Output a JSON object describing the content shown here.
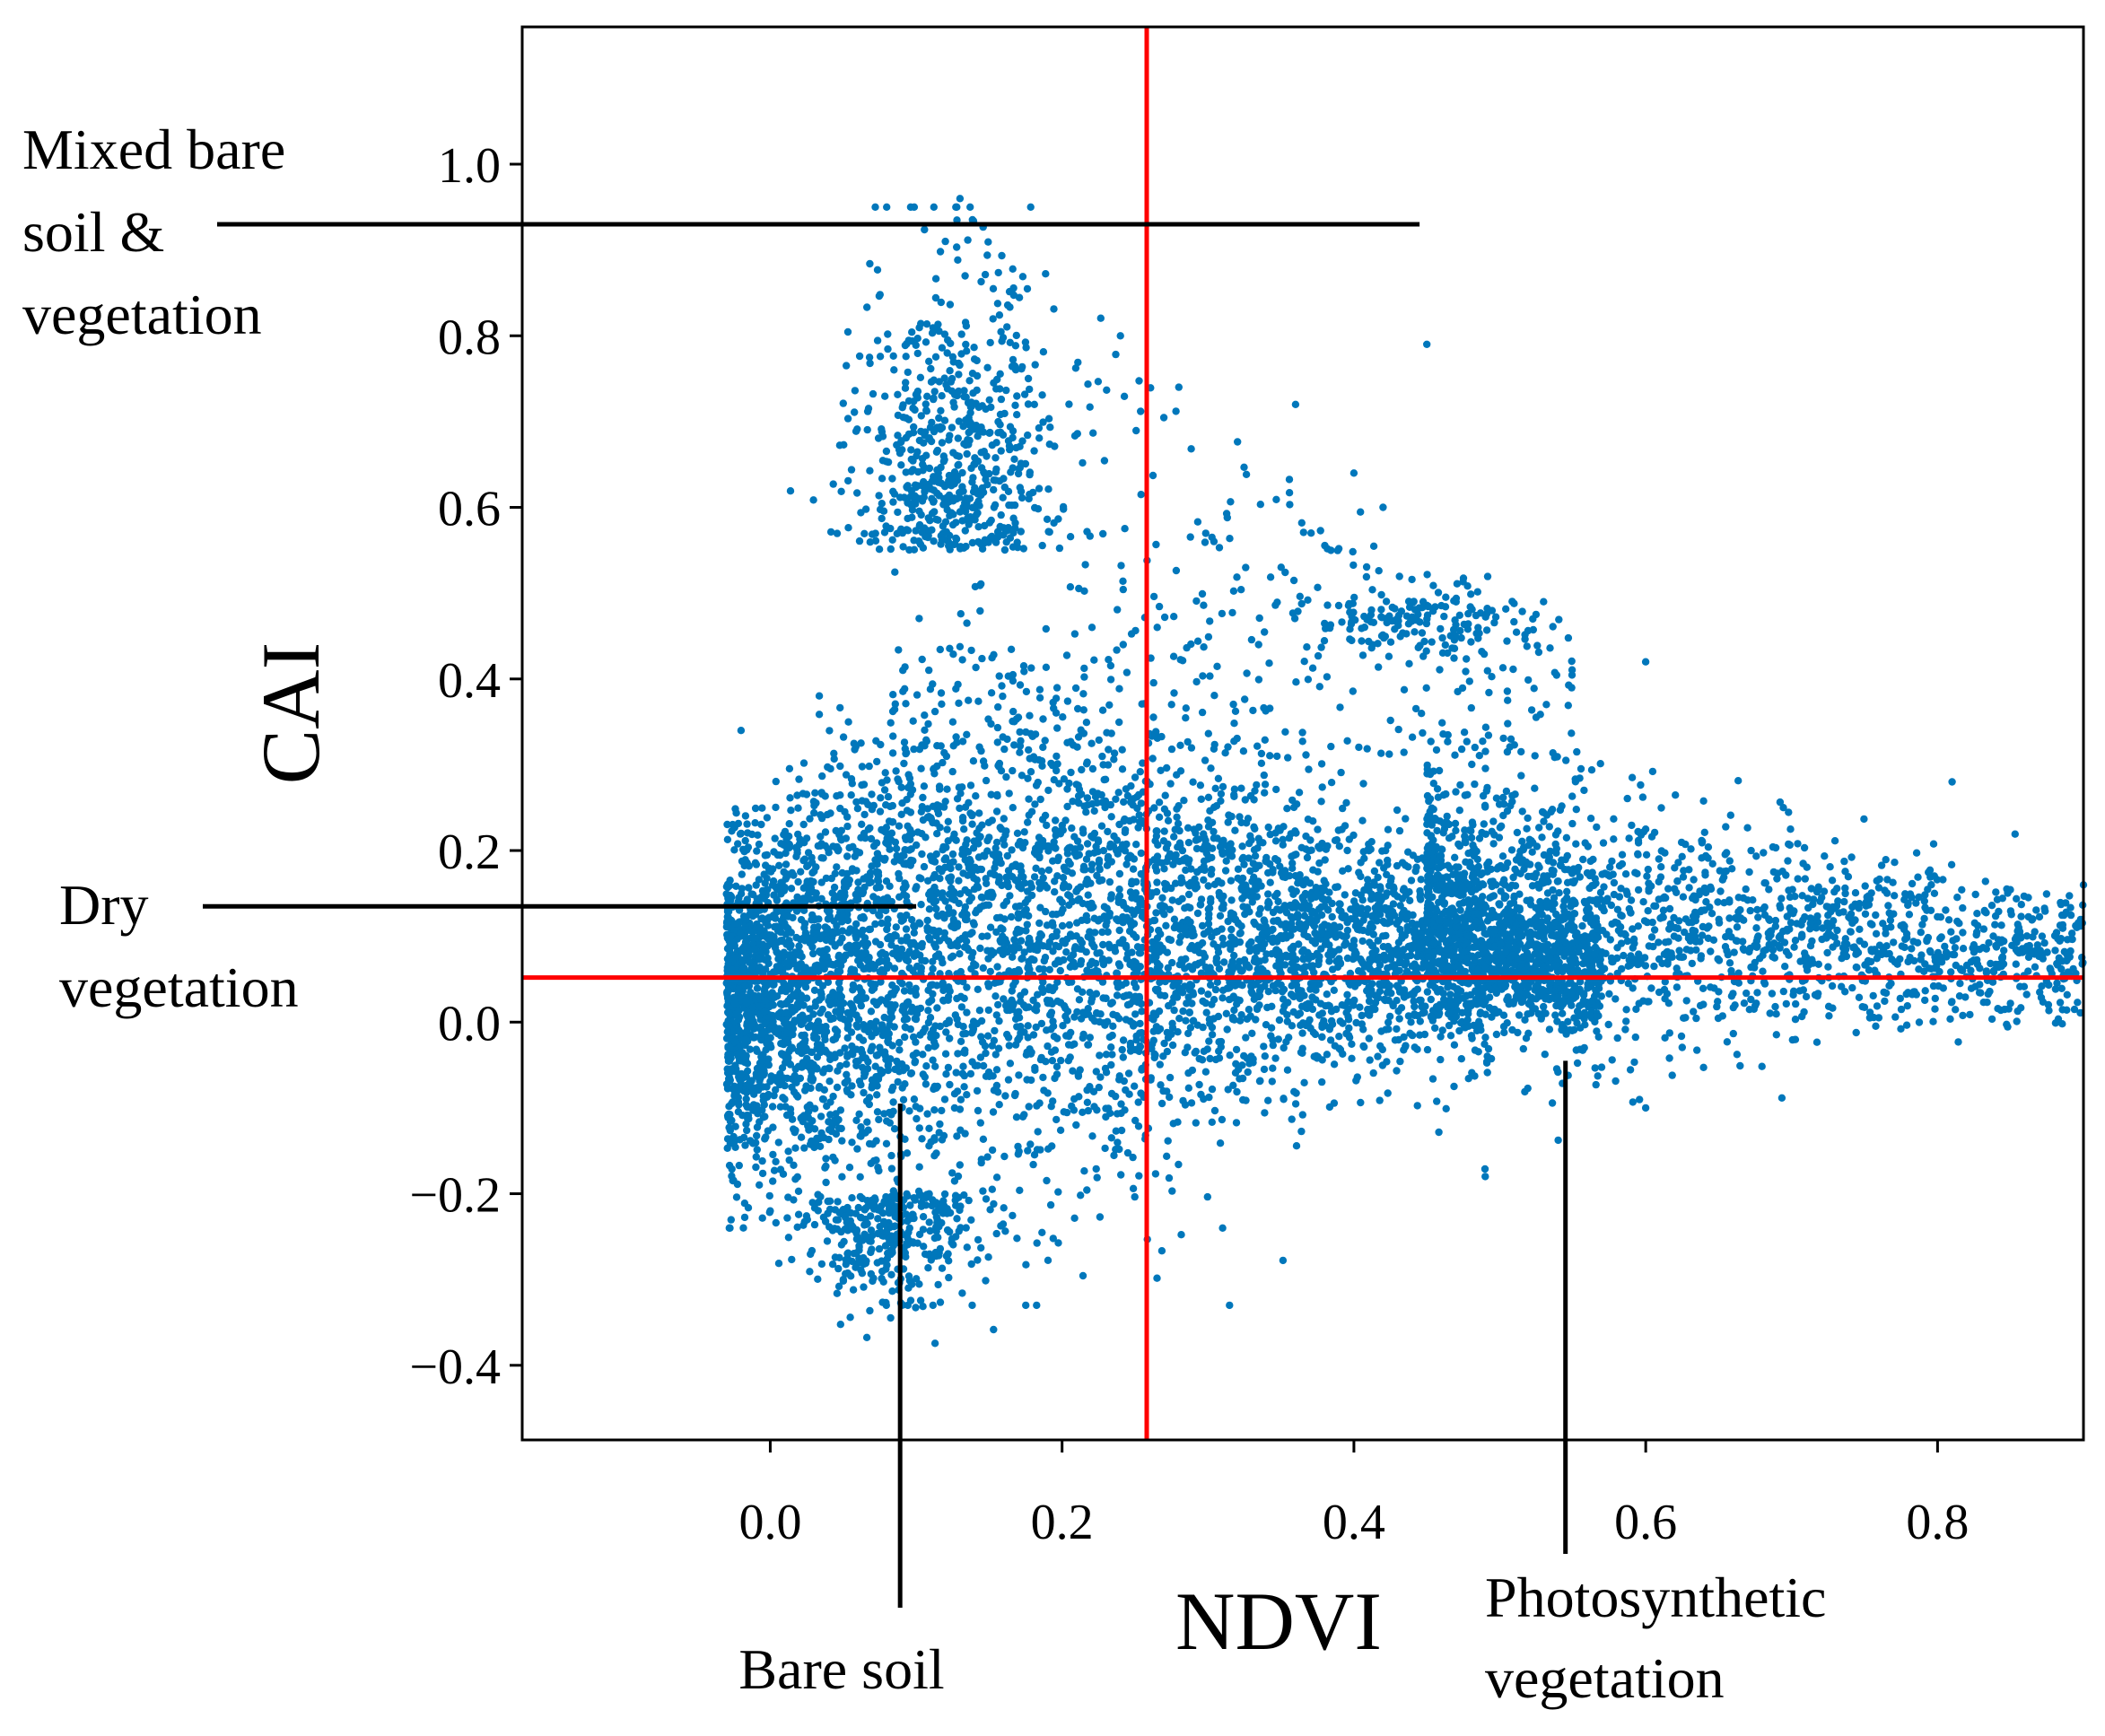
{
  "chart_data": {
    "type": "scatter",
    "title": "",
    "xlabel": "NDVI",
    "ylabel": "CAI",
    "xlim": [
      -0.17,
      0.9
    ],
    "ylim": [
      -0.487,
      1.16
    ],
    "xticks": [
      0.0,
      0.2,
      0.4,
      0.6,
      0.8
    ],
    "xtick_labels": [
      "0.0",
      "0.2",
      "0.4",
      "0.6",
      "0.8"
    ],
    "yticks": [
      -0.4,
      -0.2,
      0.0,
      0.2,
      0.4,
      0.6,
      0.8,
      1.0
    ],
    "ytick_labels": [
      "−0.4",
      "−0.2",
      "0.0",
      "0.2",
      "0.4",
      "0.6",
      "0.8",
      "1.0"
    ],
    "grid": false,
    "legend": "none",
    "series": [
      {
        "name": "pixels",
        "color": "#0077bb",
        "point_count_approx": 9000,
        "description_values": {
          "ndvi_range": [
            -0.03,
            0.9
          ],
          "cai_range": [
            -0.33,
            0.96
          ],
          "dense_core_ndvi": [
            0.0,
            0.45
          ],
          "dense_core_cai": [
            -0.3,
            0.55
          ],
          "peak_cluster": [
            0.12,
            0.9
          ],
          "secondary_cluster": [
            0.45,
            0.47
          ]
        },
        "sample_points": [
          [
            0.13,
            0.96
          ],
          [
            0.12,
            0.91
          ],
          [
            0.45,
            0.79
          ],
          [
            0.24,
            0.8
          ],
          [
            0.4,
            0.64
          ],
          [
            0.42,
            0.6
          ],
          [
            0.53,
            0.49
          ],
          [
            0.6,
            0.42
          ],
          [
            0.81,
            0.28
          ],
          [
            0.9,
            0.16
          ],
          [
            0.36,
            0.72
          ],
          [
            0.28,
            0.74
          ],
          [
            0.09,
            -0.33
          ],
          [
            0.05,
            -0.3
          ],
          [
            0.31,
            -0.24
          ],
          [
            0.49,
            -0.18
          ],
          [
            0.6,
            -0.1
          ],
          [
            -0.02,
            0.34
          ],
          [
            -0.02,
            0.22
          ],
          [
            0.0,
            -0.22
          ]
        ]
      }
    ],
    "thresholds": [
      {
        "axis": "x",
        "value": 0.258,
        "color": "#ff0000"
      },
      {
        "axis": "y",
        "value": 0.052,
        "color": "#ff0000"
      }
    ],
    "annotations": [
      {
        "id": "mixed",
        "lines": [
          "Mixed bare",
          "soil &",
          "vegetation"
        ],
        "line_y": 0.93,
        "line_x_end": 0.445
      },
      {
        "id": "dry",
        "lines": [
          "Dry",
          "vegetation"
        ],
        "line_y": 0.135,
        "line_x_end": 0.1
      },
      {
        "id": "bare",
        "lines": [
          "Bare soil"
        ],
        "line_x": 0.089,
        "line_y_top": -0.095
      },
      {
        "id": "photo",
        "lines": [
          "Photosynthetic",
          "vegetation"
        ],
        "line_x": 0.545,
        "line_y_top": -0.045
      }
    ]
  }
}
